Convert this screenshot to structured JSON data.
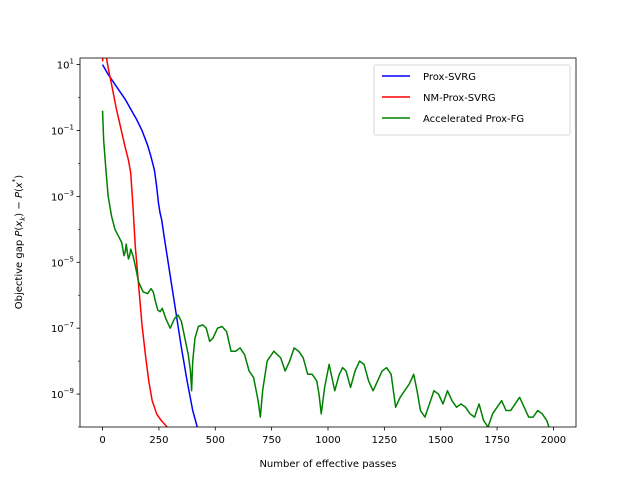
{
  "chart_data": {
    "type": "line",
    "title": "",
    "xlabel": "Number of effective passes",
    "ylabel": "Objective gap P(x_k) − P(x*)",
    "ylabel_parts": {
      "prefix": "Objective gap ",
      "p1": "P",
      "lp1": "(",
      "x1": "x",
      "k": "k",
      "rp1": ")",
      "minus": " − ",
      "p2": "P",
      "lp2": "(",
      "x2": "x",
      "star": "*",
      "rp2": ")"
    },
    "y_scale": "log",
    "xlim": [
      -100,
      2100
    ],
    "ylim_exp": [
      -10,
      1.2
    ],
    "xticks": [
      0,
      250,
      500,
      750,
      1000,
      1250,
      1500,
      1750,
      2000
    ],
    "xtick_labels": [
      "0",
      "250",
      "500",
      "750",
      "1000",
      "1250",
      "1500",
      "1750",
      "2000"
    ],
    "yticks_exp": [
      1,
      -1,
      -3,
      -5,
      -7,
      -9
    ],
    "ytick_labels": [
      {
        "base": "10",
        "exp": "1"
      },
      {
        "base": "10",
        "exp": "−1"
      },
      {
        "base": "10",
        "exp": "−3"
      },
      {
        "base": "10",
        "exp": "−5"
      },
      {
        "base": "10",
        "exp": "−7"
      },
      {
        "base": "10",
        "exp": "−9"
      }
    ],
    "grid": false,
    "legend_position": "top-right",
    "series": [
      {
        "name": "Prox-SVRG",
        "color": "#0000ff",
        "x": [
          0,
          25,
          50,
          75,
          100,
          125,
          150,
          175,
          200,
          215,
          230,
          240,
          248,
          255,
          262,
          275,
          300,
          325,
          350,
          375,
          400,
          420,
          440
        ],
        "log10_y": [
          1.0,
          0.7,
          0.45,
          0.2,
          -0.05,
          -0.35,
          -0.65,
          -1.0,
          -1.45,
          -1.8,
          -2.2,
          -2.7,
          -3.2,
          -3.5,
          -3.7,
          -4.3,
          -5.4,
          -6.5,
          -7.6,
          -8.6,
          -9.5,
          -10.0,
          -10.5
        ]
      },
      {
        "name": "NM-Prox-SVRG",
        "color": "#ff0000",
        "x": [
          0,
          5,
          15,
          25,
          40,
          60,
          80,
          100,
          115,
          125,
          135,
          145,
          160,
          175,
          190,
          205,
          220,
          240,
          260,
          280,
          300,
          310
        ],
        "log10_y": [
          1.1,
          1.55,
          1.3,
          0.9,
          0.4,
          -0.3,
          -0.9,
          -1.5,
          -1.9,
          -2.3,
          -3.3,
          -4.5,
          -5.7,
          -6.9,
          -7.8,
          -8.6,
          -9.2,
          -9.6,
          -9.8,
          -9.95,
          -10.1,
          -10.3
        ]
      },
      {
        "name": "Accelerated Prox-FG",
        "color": "#008000",
        "x": [
          0,
          5,
          15,
          25,
          40,
          55,
          70,
          85,
          95,
          100,
          105,
          110,
          115,
          120,
          125,
          135,
          145,
          160,
          180,
          200,
          215,
          225,
          235,
          245,
          255,
          265,
          280,
          300,
          320,
          335,
          350,
          365,
          380,
          390,
          395,
          400,
          410,
          425,
          445,
          460,
          475,
          490,
          510,
          530,
          550,
          570,
          590,
          610,
          630,
          650,
          670,
          690,
          700,
          710,
          730,
          760,
          790,
          810,
          830,
          850,
          870,
          890,
          910,
          930,
          950,
          960,
          970,
          985,
          1005,
          1030,
          1050,
          1065,
          1080,
          1100,
          1120,
          1140,
          1160,
          1180,
          1200,
          1220,
          1240,
          1260,
          1280,
          1300,
          1320,
          1340,
          1360,
          1380,
          1395,
          1410,
          1430,
          1450,
          1470,
          1490,
          1510,
          1530,
          1550,
          1570,
          1590,
          1610,
          1630,
          1650,
          1670,
          1690,
          1710,
          1730,
          1750,
          1770,
          1790,
          1810,
          1830,
          1850,
          1870,
          1890,
          1910,
          1930,
          1950,
          1970,
          1980,
          1990,
          2000
        ],
        "log10_y": [
          -0.4,
          -1.3,
          -2.2,
          -3.0,
          -3.6,
          -4.0,
          -4.2,
          -4.4,
          -4.8,
          -4.7,
          -4.45,
          -4.7,
          -4.9,
          -4.8,
          -4.6,
          -4.8,
          -5.1,
          -5.6,
          -5.9,
          -5.95,
          -5.8,
          -5.9,
          -6.2,
          -6.45,
          -6.5,
          -6.4,
          -6.7,
          -7.0,
          -6.7,
          -6.6,
          -6.8,
          -7.3,
          -7.8,
          -8.3,
          -8.9,
          -8.0,
          -7.3,
          -6.95,
          -6.9,
          -7.0,
          -7.4,
          -7.3,
          -7.0,
          -6.95,
          -7.1,
          -7.7,
          -7.7,
          -7.6,
          -7.8,
          -8.3,
          -8.5,
          -9.2,
          -9.7,
          -8.9,
          -8.0,
          -7.7,
          -7.9,
          -8.3,
          -8.0,
          -7.6,
          -7.7,
          -7.9,
          -8.4,
          -8.4,
          -8.6,
          -9.0,
          -9.6,
          -8.8,
          -8.1,
          -8.9,
          -8.4,
          -8.2,
          -8.3,
          -8.8,
          -8.3,
          -8.0,
          -8.1,
          -8.6,
          -8.9,
          -8.6,
          -8.3,
          -8.2,
          -8.4,
          -9.4,
          -9.1,
          -8.9,
          -8.7,
          -8.4,
          -8.9,
          -9.5,
          -9.7,
          -9.3,
          -8.9,
          -9.0,
          -9.3,
          -8.9,
          -9.2,
          -9.4,
          -9.3,
          -9.4,
          -9.6,
          -9.7,
          -9.3,
          -9.8,
          -10.0,
          -9.6,
          -9.4,
          -9.2,
          -9.5,
          -9.5,
          -9.3,
          -9.1,
          -9.4,
          -9.7,
          -9.7,
          -9.5,
          -9.6,
          -9.8,
          -10.0,
          -10.2,
          -10.5
        ]
      }
    ]
  }
}
